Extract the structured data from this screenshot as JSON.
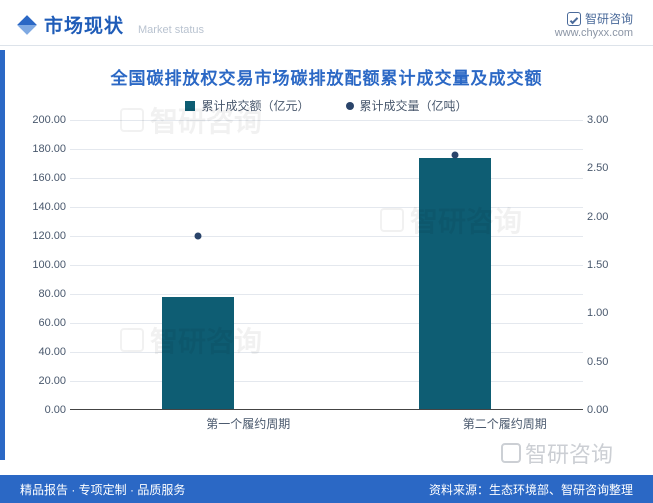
{
  "header": {
    "title": "市场现状",
    "subtitle": "Market status",
    "brand_name": "智研咨询",
    "brand_url": "www.chyxx.com"
  },
  "chart": {
    "type": "bar+scatter",
    "title": "全国碳排放权交易市场碳排放配额累计成交量及成交额",
    "categories": [
      "第一个履约周期",
      "第二个履约周期"
    ],
    "bar_series": {
      "name": "累计成交额（亿元）",
      "values": [
        77,
        173
      ],
      "color": "#0e5d73"
    },
    "dot_series": {
      "name": "累计成交量（亿吨）",
      "values": [
        1.79,
        2.63
      ],
      "color": "#2a446a"
    },
    "y_left": {
      "min": 0,
      "max": 200,
      "step": 20,
      "decimals": 2
    },
    "y_right": {
      "min": 0,
      "max": 3,
      "step": 0.5,
      "decimals": 2
    },
    "bar_width_ratio": 0.28,
    "background": "#ffffff",
    "grid_color": "#e4e8ee",
    "axis_font_size": 11,
    "legend_font_size": 12,
    "title_font_size": 17,
    "title_color": "#2b68c5"
  },
  "footer": {
    "left": "精品报告 · 专项定制 · 品质服务",
    "right": "资料来源：生态环境部、智研咨询整理"
  },
  "watermark": "智研咨询"
}
